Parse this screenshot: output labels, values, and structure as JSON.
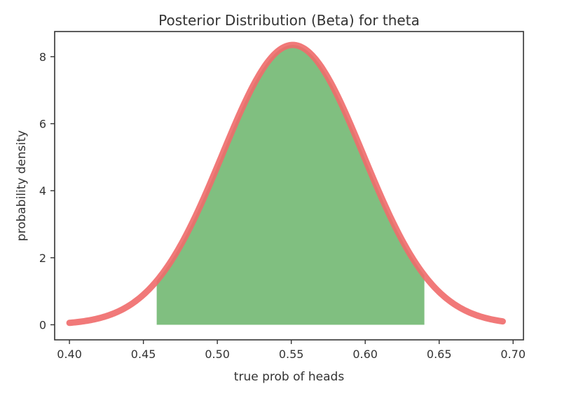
{
  "chart_data": {
    "type": "area",
    "title": "Posterior Distribution (Beta) for theta",
    "xlabel": "true prob of heads",
    "ylabel": "probability density",
    "xlim": [
      0.39,
      0.707
    ],
    "ylim": [
      -0.45,
      8.75
    ],
    "xticks": [
      0.4,
      0.45,
      0.5,
      0.55,
      0.6,
      0.65,
      0.7
    ],
    "xtick_labels": [
      "0.40",
      "0.45",
      "0.50",
      "0.55",
      "0.60",
      "0.65",
      "0.70"
    ],
    "yticks": [
      0,
      2,
      4,
      6,
      8
    ],
    "ytick_labels": [
      "0",
      "2",
      "4",
      "6",
      "8"
    ],
    "grid": false,
    "curve": {
      "x_start": 0.4,
      "x_end": 0.693,
      "mean": 0.551,
      "sd": 0.0478,
      "peak": 8.35
    },
    "shaded_interval": [
      0.459,
      0.64
    ],
    "colors": {
      "curve": "#f06a6a",
      "curve_edge": "#d84c4c",
      "fill": "#80bf80",
      "axes": "#333333"
    }
  }
}
